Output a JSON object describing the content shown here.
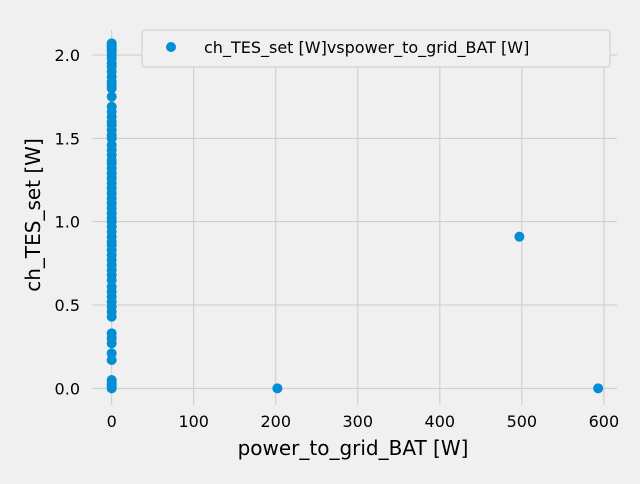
{
  "chart_data": {
    "type": "scatter",
    "xlabel": "power_to_grid_BAT [W]",
    "ylabel": "ch_TES_set [W]",
    "xlim": [
      -24,
      616
    ],
    "ylim": [
      -0.1,
      2.15
    ],
    "xticks": [
      0,
      100,
      200,
      300,
      400,
      500,
      600
    ],
    "yticks": [
      0.0,
      0.5,
      1.0,
      1.5,
      2.0
    ],
    "xtick_labels": [
      "0",
      "100",
      "200",
      "300",
      "400",
      "500",
      "600"
    ],
    "ytick_labels": [
      "0.0",
      "0.5",
      "1.0",
      "1.5",
      "2.0"
    ],
    "grid": true,
    "legend_position": "top-right",
    "marker_color": "#008fd5",
    "series": [
      {
        "name": "ch_TES_set [W]vspower_to_grid_BAT [W]",
        "points": [
          [
            0,
            2.07
          ],
          [
            0,
            2.06
          ],
          [
            0,
            2.05
          ],
          [
            0,
            2.04
          ],
          [
            0,
            2.03
          ],
          [
            0,
            2.02
          ],
          [
            0,
            2.0
          ],
          [
            0,
            1.98
          ],
          [
            0,
            1.95
          ],
          [
            0,
            1.93
          ],
          [
            0,
            1.9
          ],
          [
            0,
            1.87
          ],
          [
            0,
            1.84
          ],
          [
            0,
            1.82
          ],
          [
            0,
            1.8
          ],
          [
            0,
            1.75
          ],
          [
            0,
            1.69
          ],
          [
            0,
            1.66
          ],
          [
            0,
            1.63
          ],
          [
            0,
            1.6
          ],
          [
            0,
            1.58
          ],
          [
            0,
            1.55
          ],
          [
            0,
            1.52
          ],
          [
            0,
            1.5
          ],
          [
            0,
            1.46
          ],
          [
            0,
            1.43
          ],
          [
            0,
            1.4
          ],
          [
            0,
            1.37
          ],
          [
            0,
            1.35
          ],
          [
            0,
            1.32
          ],
          [
            0,
            1.29
          ],
          [
            0,
            1.26
          ],
          [
            0,
            1.23
          ],
          [
            0,
            1.2
          ],
          [
            0,
            1.17
          ],
          [
            0,
            1.14
          ],
          [
            0,
            1.11
          ],
          [
            0,
            1.08
          ],
          [
            0,
            1.05
          ],
          [
            0,
            1.02
          ],
          [
            0,
            1.0
          ],
          [
            0,
            0.97
          ],
          [
            0,
            0.94
          ],
          [
            0,
            0.91
          ],
          [
            0,
            0.88
          ],
          [
            0,
            0.86
          ],
          [
            0,
            0.83
          ],
          [
            0,
            0.8
          ],
          [
            0,
            0.77
          ],
          [
            0,
            0.74
          ],
          [
            0,
            0.71
          ],
          [
            0,
            0.68
          ],
          [
            0,
            0.65
          ],
          [
            0,
            0.61
          ],
          [
            0,
            0.58
          ],
          [
            0,
            0.55
          ],
          [
            0,
            0.52
          ],
          [
            0,
            0.49
          ],
          [
            0,
            0.46
          ],
          [
            0,
            0.43
          ],
          [
            0,
            0.33
          ],
          [
            0,
            0.3
          ],
          [
            0,
            0.27
          ],
          [
            0,
            0.21
          ],
          [
            0,
            0.17
          ],
          [
            0,
            0.05
          ],
          [
            0,
            0.03
          ],
          [
            0,
            0.02
          ],
          [
            0,
            0.01
          ],
          [
            0,
            0.0
          ],
          [
            202,
            0.0
          ],
          [
            497,
            0.91
          ],
          [
            593,
            0.0
          ]
        ]
      }
    ]
  }
}
